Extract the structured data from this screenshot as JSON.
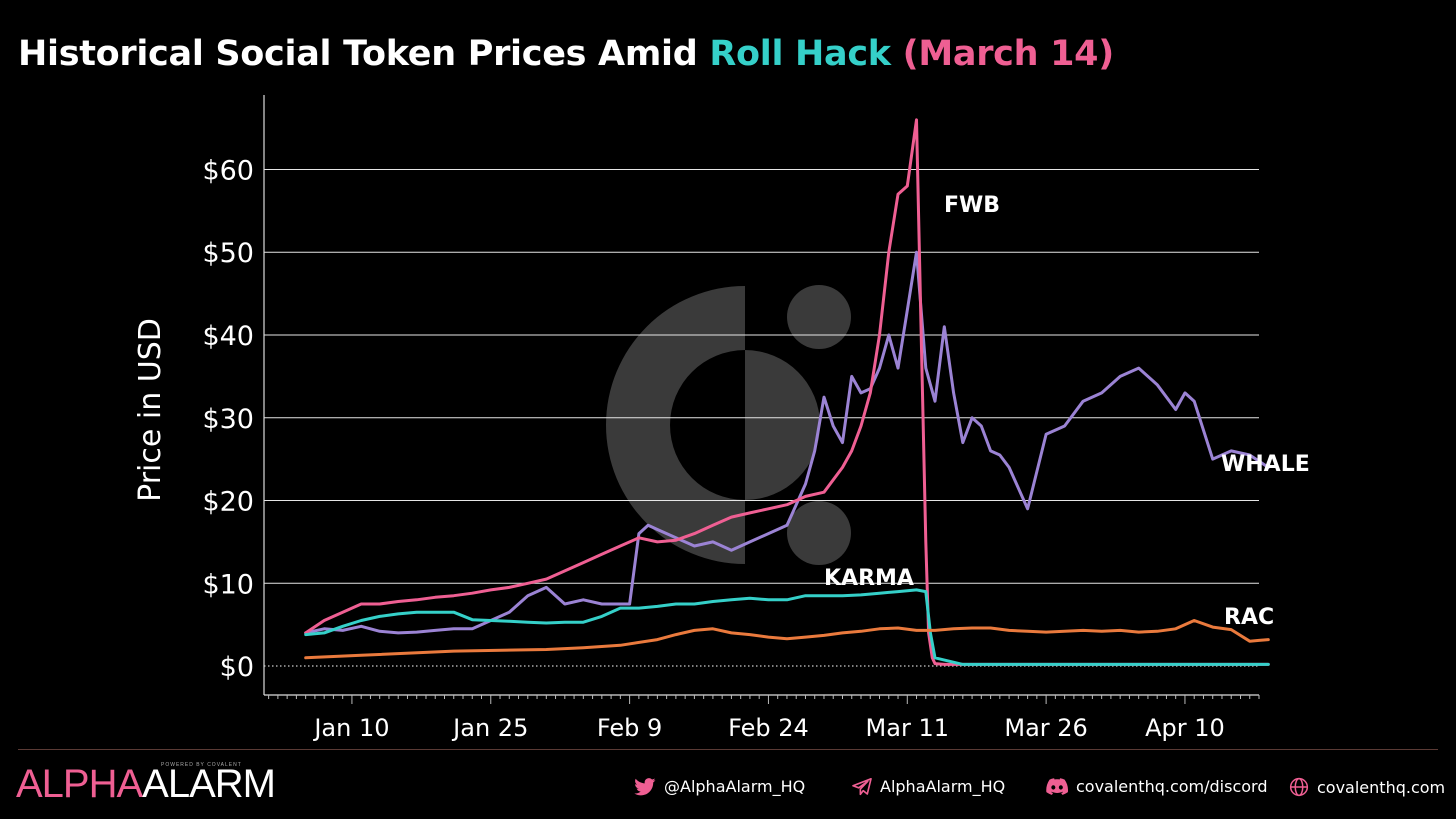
{
  "title": {
    "prefix": "Historical Social Token Prices Amid ",
    "highlight": "Roll Hack",
    "suffix": " (March 14)"
  },
  "colors": {
    "background": "#000000",
    "highlight": "#35d0c9",
    "suffix": "#ef5f93"
  },
  "chart_data": {
    "type": "line",
    "ylabel": "Price in USD",
    "xlabel": "",
    "ylim": [
      -3.5,
      69
    ],
    "y_ticks": [
      0,
      10,
      20,
      30,
      40,
      50,
      60
    ],
    "y_tick_labels": [
      "$0",
      "$10",
      "$20",
      "$30",
      "$40",
      "$50",
      "$60"
    ],
    "x_ticks": [
      "Jan 10",
      "Jan 25",
      "Feb 9",
      "Feb 24",
      "Mar 11",
      "Mar 26",
      "Apr 10"
    ],
    "x_tick_days": [
      9,
      24,
      39,
      54,
      69,
      84,
      99
    ],
    "x_range_days": [
      -0.5,
      107
    ],
    "grid": "horizontal",
    "annotations": [
      {
        "text": "FWB",
        "series": "FWB"
      },
      {
        "text": "WHALE",
        "series": "WHALE"
      },
      {
        "text": "KARMA",
        "series": "KARMA"
      },
      {
        "text": "RAC",
        "series": "RAC"
      }
    ],
    "series": [
      {
        "name": "WHALE",
        "color": "#9b83d4",
        "x": [
          4,
          6,
          8,
          10,
          12,
          14,
          16,
          18,
          20,
          22,
          24,
          26,
          28,
          30,
          32,
          34,
          36,
          38,
          39,
          40,
          41,
          42,
          44,
          46,
          48,
          50,
          52,
          54,
          56,
          58,
          59,
          60,
          61,
          62,
          63,
          64,
          65,
          66,
          67,
          68,
          69,
          70,
          71,
          72,
          73,
          74,
          75,
          76,
          77,
          78,
          79,
          80,
          82,
          84,
          86,
          88,
          90,
          92,
          94,
          96,
          98,
          99,
          100,
          102,
          104,
          106,
          108
        ],
        "values": [
          4,
          4.5,
          4.3,
          4.8,
          4.2,
          4,
          4.1,
          4.3,
          4.5,
          4.5,
          5.5,
          6.5,
          8.5,
          9.5,
          7.5,
          8,
          7.5,
          7.5,
          7.5,
          16,
          17,
          16.5,
          15.5,
          14.5,
          15,
          14,
          15,
          16,
          17,
          22,
          26,
          32.5,
          29,
          27,
          35,
          33,
          33.5,
          36,
          40,
          36,
          43,
          50,
          36,
          32,
          41,
          33,
          27,
          30,
          29,
          26,
          25.5,
          24,
          19,
          28,
          29,
          32,
          33,
          35,
          36,
          34,
          31,
          33,
          32,
          25,
          26,
          25.5,
          24
        ]
      },
      {
        "name": "FWB",
        "color": "#ef5f93",
        "x": [
          4,
          6,
          8,
          10,
          12,
          14,
          16,
          18,
          20,
          22,
          24,
          26,
          28,
          30,
          32,
          34,
          36,
          38,
          40,
          42,
          44,
          46,
          48,
          50,
          52,
          54,
          56,
          58,
          60,
          62,
          63,
          64,
          65,
          66,
          67,
          68,
          69,
          70,
          70.5,
          71,
          71.3,
          71.7,
          72,
          73,
          75,
          80,
          85,
          90,
          95,
          100,
          105,
          108
        ],
        "values": [
          4,
          5.5,
          6.5,
          7.5,
          7.5,
          7.8,
          8,
          8.3,
          8.5,
          8.8,
          9.2,
          9.5,
          10,
          10.5,
          11.5,
          12.5,
          13.5,
          14.5,
          15.5,
          15,
          15.2,
          16,
          17,
          18,
          18.5,
          19,
          19.5,
          20.5,
          21,
          24,
          26,
          29,
          33,
          40,
          50,
          57,
          58,
          66,
          40,
          15,
          4,
          1,
          0.3,
          0.2,
          0.2,
          0.2,
          0.2,
          0.2,
          0.2,
          0.2,
          0.2,
          0.2
        ]
      },
      {
        "name": "KARMA",
        "color": "#35d0c9",
        "x": [
          4,
          6,
          8,
          10,
          12,
          14,
          16,
          18,
          20,
          22,
          24,
          26,
          28,
          30,
          32,
          34,
          36,
          38,
          40,
          42,
          44,
          46,
          48,
          50,
          52,
          54,
          56,
          58,
          60,
          62,
          64,
          66,
          68,
          70,
          71,
          71.5,
          72,
          75,
          80,
          85,
          90,
          95,
          100,
          105,
          108
        ],
        "values": [
          3.8,
          4,
          4.8,
          5.5,
          6,
          6.3,
          6.5,
          6.5,
          6.5,
          5.6,
          5.5,
          5.4,
          5.3,
          5.2,
          5.3,
          5.3,
          6,
          7,
          7,
          7.2,
          7.5,
          7.5,
          7.8,
          8,
          8.2,
          8,
          8,
          8.5,
          8.5,
          8.5,
          8.6,
          8.8,
          9,
          9.2,
          9,
          4,
          1,
          0.2,
          0.2,
          0.2,
          0.2,
          0.2,
          0.2,
          0.2,
          0.2
        ]
      },
      {
        "name": "RAC",
        "color": "#ea7a3d",
        "x": [
          4,
          10,
          20,
          30,
          34,
          38,
          42,
          44,
          46,
          48,
          50,
          52,
          54,
          56,
          58,
          60,
          62,
          64,
          66,
          68,
          70,
          72,
          74,
          76,
          78,
          80,
          82,
          84,
          86,
          88,
          90,
          92,
          94,
          96,
          98,
          100,
          102,
          104,
          106,
          107,
          108
        ],
        "values": [
          1,
          1.3,
          1.8,
          2,
          2.2,
          2.5,
          3.2,
          3.8,
          4.3,
          4.5,
          4,
          3.8,
          3.5,
          3.3,
          3.5,
          3.7,
          4,
          4.2,
          4.5,
          4.6,
          4.3,
          4.3,
          4.5,
          4.6,
          4.6,
          4.3,
          4.2,
          4.1,
          4.2,
          4.3,
          4.2,
          4.3,
          4.1,
          4.2,
          4.5,
          5.5,
          4.7,
          4.4,
          3,
          3.1,
          3.2
        ]
      }
    ]
  },
  "footer": {
    "brand_alpha": "ALPHA",
    "brand_alarm": "ALARM",
    "brand_powered": "POWERED BY COVALENT",
    "twitter": "@AlphaAlarm_HQ",
    "telegram": "AlphaAlarm_HQ",
    "discord": "covalenthq.com/discord",
    "website": "covalenthq.com",
    "icon_color": "#ef5f93"
  }
}
